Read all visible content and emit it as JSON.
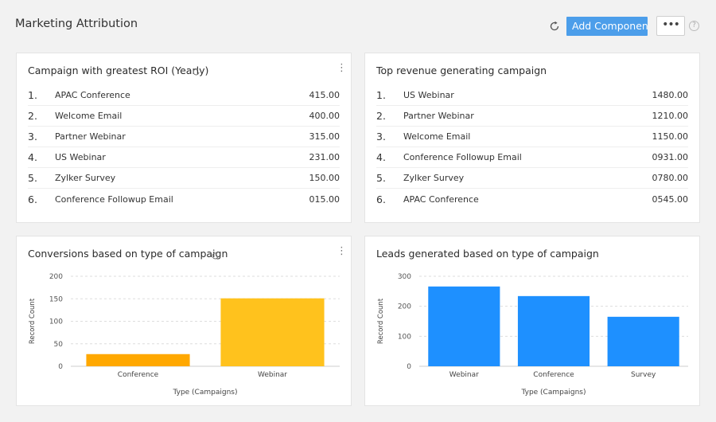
{
  "header": {
    "title": "Marketing Attribution",
    "add_component_label": "Add Component",
    "more_label": "•••",
    "help_label": "?"
  },
  "cards": {
    "roi": {
      "title": "Campaign with greatest ROI (Yearly)",
      "items": [
        {
          "rank": "1.",
          "name": "APAC Conference",
          "value": "415.00"
        },
        {
          "rank": "2.",
          "name": "Welcome Email",
          "value": "400.00"
        },
        {
          "rank": "3.",
          "name": "Partner Webinar",
          "value": "315.00"
        },
        {
          "rank": "4.",
          "name": "US Webinar",
          "value": "231.00"
        },
        {
          "rank": "5.",
          "name": "Zylker Survey",
          "value": "150.00"
        },
        {
          "rank": "6.",
          "name": "Conference Followup Email",
          "value": "015.00"
        }
      ]
    },
    "revenue": {
      "title": "Top revenue generating campaign",
      "items": [
        {
          "rank": "1.",
          "name": "US Webinar",
          "value": "1480.00"
        },
        {
          "rank": "2.",
          "name": "Partner Webinar",
          "value": "1210.00"
        },
        {
          "rank": "3.",
          "name": "Welcome Email",
          "value": "1150.00"
        },
        {
          "rank": "4.",
          "name": "Conference Followup Email",
          "value": "0931.00"
        },
        {
          "rank": "5.",
          "name": "Zylker Survey",
          "value": "0780.00"
        },
        {
          "rank": "6.",
          "name": "APAC Conference",
          "value": "0545.00"
        }
      ]
    },
    "conversions": {
      "title": "Conversions based on type of campaign"
    },
    "leads": {
      "title": "Leads generated based on type of campaign"
    }
  },
  "chart_data": [
    {
      "type": "bar",
      "title": "Conversions based on type of campaign",
      "categories": [
        "Conference",
        "Webinar"
      ],
      "values": [
        27,
        151
      ],
      "colors": [
        "#ffa800",
        "#ffc21d"
      ],
      "xlabel": "Type (Campaigns)",
      "ylabel": "Record Count",
      "ylim": [
        0,
        200
      ],
      "yticks": [
        0,
        50,
        100,
        150,
        200
      ],
      "grid": true
    },
    {
      "type": "bar",
      "title": "Leads generated based on type of campaign",
      "categories": [
        "Webinar",
        "Conference",
        "Survey"
      ],
      "values": [
        266,
        234,
        165
      ],
      "colors": [
        "#1e90ff",
        "#1e90ff",
        "#1e90ff"
      ],
      "xlabel": "Type (Campaigns)",
      "ylabel": "Record Count",
      "ylim": [
        0,
        300
      ],
      "yticks": [
        0,
        100,
        200,
        300
      ],
      "grid": true
    }
  ]
}
